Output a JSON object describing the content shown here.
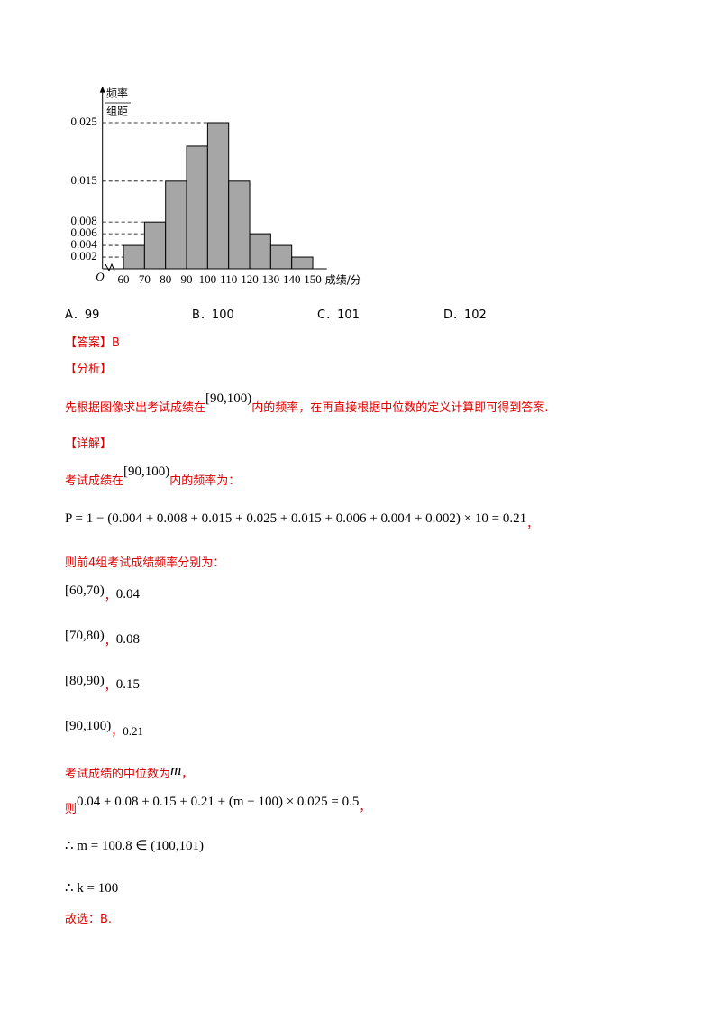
{
  "chart_data": {
    "type": "histogram",
    "y_label_top": "频率",
    "y_label_bottom": "组距",
    "x_label": "成绩/分",
    "origin": "O",
    "bins": [
      60,
      70,
      80,
      90,
      100,
      110,
      120,
      130,
      140,
      150
    ],
    "values": [
      0.004,
      0.008,
      0.015,
      0.021,
      0.025,
      0.015,
      0.006,
      0.004,
      0.002
    ],
    "color": "#a6a6a6",
    "xlim": [
      50,
      155
    ],
    "ylim": [
      0,
      0.03
    ],
    "yticks": [
      0.002,
      0.004,
      0.006,
      0.008,
      0.015,
      0.025
    ]
  },
  "options": [
    "A．99",
    "B．100",
    "C．101",
    "D．102"
  ],
  "answer": {
    "label": "【答案】",
    "text": "B"
  },
  "analysis": {
    "label": "【分析】",
    "parts": [
      "先根据图像求出考试成绩在",
      "[90,100)",
      "内的频率，在再直接根据中位数的定义计算即可得到答案."
    ]
  },
  "detail": {
    "label": "【详解】",
    "line1": [
      "考试成绩在",
      "[90,100)",
      "内的频率为："
    ],
    "line2": [
      "P = 1 − (0.004 + 0.008 + 0.015 + 0.025 + 0.015 + 0.006 + 0.004 + 0.002) × 10 = 0.21",
      "，"
    ],
    "line3": "则前4组考试成绩频率分别为：",
    "groups": [
      [
        "[60,70)",
        "，",
        "0.04"
      ],
      [
        "[70,80)",
        "，",
        "0.08"
      ],
      [
        "[80,90)",
        "，",
        "0.15"
      ],
      [
        "[90,100)",
        "，",
        "0.21"
      ]
    ],
    "line4": [
      "考试成绩的中位数为",
      "m",
      "，"
    ],
    "line5": [
      "则",
      "0.04 + 0.08 + 0.15 + 0.21 + (m − 100) × 0.025 = 0.5",
      "，"
    ],
    "line6": "∴ m = 100.8 ∈ (100,101)",
    "line7": "∴ k = 100",
    "line8": "故选：B."
  }
}
